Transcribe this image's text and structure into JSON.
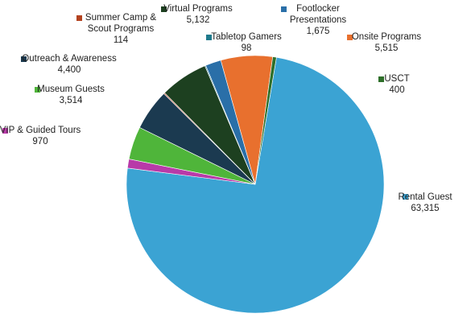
{
  "chart_data": {
    "type": "pie",
    "title": "",
    "slices": [
      {
        "name": "Rental Guest",
        "value": 63315,
        "display": "63,315",
        "color": "#3ba3d3"
      },
      {
        "name": "VIP & Guided Tours",
        "value": 970,
        "display": "970",
        "color": "#b83aa8"
      },
      {
        "name": "Museum Guests",
        "value": 3514,
        "display": "3,514",
        "color": "#4fb53a"
      },
      {
        "name": "Outreach & Awareness",
        "value": 4400,
        "display": "4,400",
        "color": "#1b3a50"
      },
      {
        "name": "Summer Camp & Scout Programs",
        "value": 114,
        "display": "114",
        "color": "#b3421f"
      },
      {
        "name": "Virtual Programs",
        "value": 5132,
        "display": "5,132",
        "color": "#1d4020"
      },
      {
        "name": "Tabletop Gamers",
        "value": 98,
        "display": "98",
        "color": "#1f7a8c"
      },
      {
        "name": "Footlocker Presentations",
        "value": 1675,
        "display": "1,675",
        "color": "#2a6fa8"
      },
      {
        "name": "Onsite Programs",
        "value": 5515,
        "display": "5,515",
        "color": "#e8702e"
      },
      {
        "name": "USCT",
        "value": 400,
        "display": "400",
        "color": "#2e6f2a"
      }
    ],
    "legend": "labels-outside"
  }
}
